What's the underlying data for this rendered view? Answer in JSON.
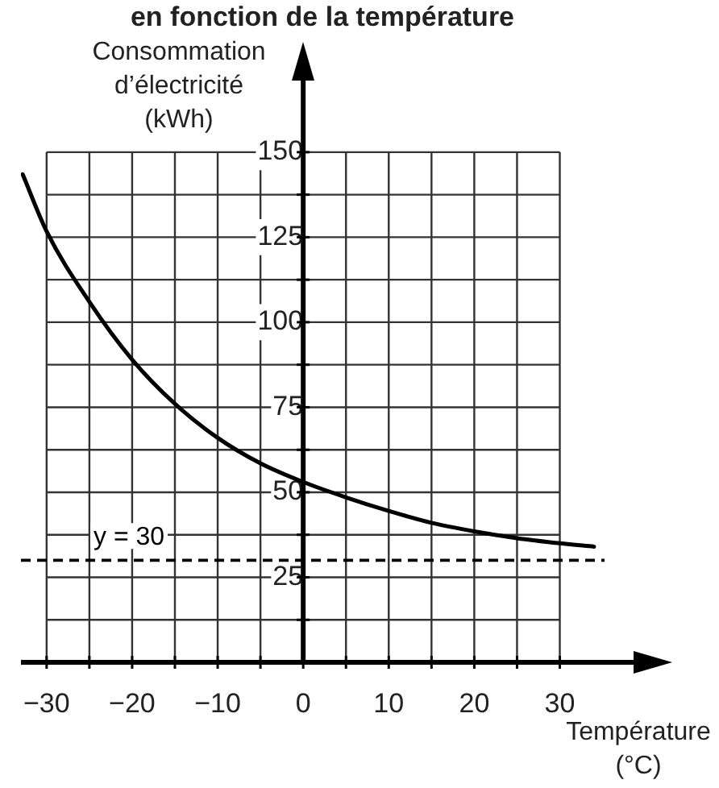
{
  "chart_data": {
    "type": "line",
    "title": "en fonction de la température",
    "xlabel": "Température (°C)",
    "ylabel": "Consommation d’électricité (kWh)",
    "x": [
      -32.8,
      -30,
      -25,
      -20,
      -15,
      -10,
      -5,
      0,
      5,
      10,
      15,
      20,
      25,
      30,
      34
    ],
    "series": [
      {
        "color": "#000000",
        "values": [
          143.5,
          126.7,
          106,
          89,
          76,
          66,
          58.5,
          53,
          48.5,
          44.5,
          41,
          38.5,
          36.5,
          35,
          34
        ]
      }
    ],
    "xlim": [
      -33,
      39
    ],
    "ylim": [
      0,
      172
    ],
    "xticks": [
      {
        "value": -30,
        "label": "−30"
      },
      {
        "value": -25,
        "label": null
      },
      {
        "value": -20,
        "label": "−20"
      },
      {
        "value": -15,
        "label": null
      },
      {
        "value": -10,
        "label": "−10"
      },
      {
        "value": -5,
        "label": null
      },
      0,
      {
        "value": 5,
        "label": null
      },
      10,
      {
        "value": 15,
        "label": null
      },
      20,
      {
        "value": 25,
        "label": null
      },
      30
    ],
    "yticks": [
      {
        "value": 0,
        "label": null
      },
      {
        "value": 12.5,
        "label": null
      },
      25,
      {
        "value": 37.5,
        "label": null
      },
      50,
      {
        "value": 62.5,
        "label": null
      },
      75,
      {
        "value": 87.5,
        "label": null
      },
      100,
      {
        "value": 112.5,
        "label": null
      },
      125,
      {
        "value": 137.5,
        "label": null
      },
      150
    ],
    "grid": true,
    "legend": false,
    "marker": "none",
    "line_style": "solid",
    "ref_lines": [
      {
        "axis": "y",
        "value": 30,
        "label": "y = 30",
        "line_style": "dashed",
        "color": "#000000"
      }
    ]
  }
}
